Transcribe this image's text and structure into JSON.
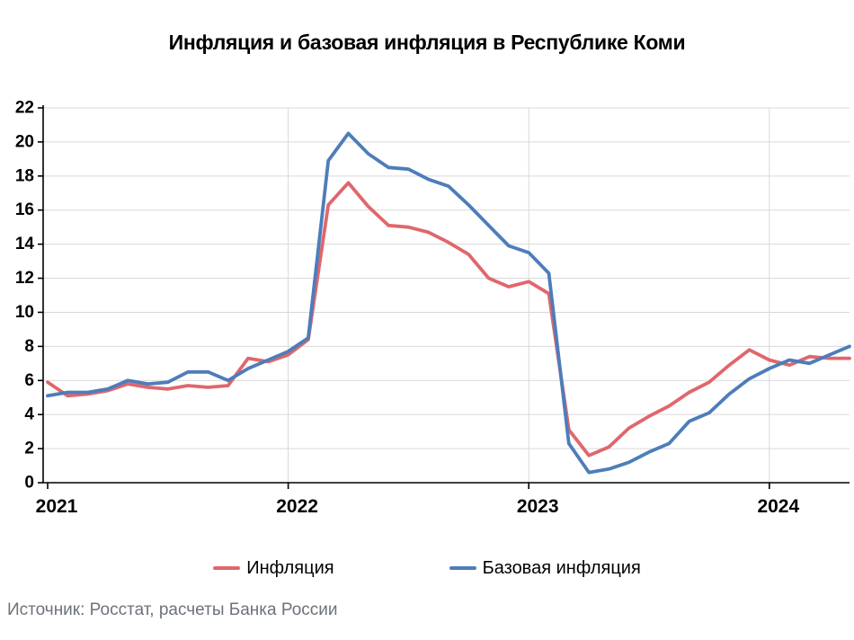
{
  "title": "Инфляция и базовая инфляция в Республике Коми",
  "source": "Источник: Росстат, расчеты Банка России",
  "legend": [
    {
      "label": "Инфляция",
      "color": "#df676c"
    },
    {
      "label": "Базовая инфляция",
      "color": "#4d7dba"
    }
  ],
  "colors": {
    "grid": "#d9d9d9",
    "axis": "#000000",
    "tick_label": "#000000",
    "inflation_line": "#df676c",
    "core_inflation_line": "#4d7dba"
  },
  "chart_data": {
    "type": "line",
    "title": "Инфляция и базовая инфляция в Республике Коми",
    "x_unit": "month",
    "x_start": "2021-01",
    "x_end": "2024-05",
    "x_tick_labels": [
      "2021",
      "2022",
      "2023",
      "2024"
    ],
    "x_tick_month_index": [
      0,
      12,
      24,
      36
    ],
    "y_tick_labels": [
      "0",
      "2",
      "4",
      "6",
      "8",
      "10",
      "12",
      "14",
      "16",
      "18",
      "20",
      "22"
    ],
    "ylim": [
      0,
      22
    ],
    "y_tick_step": 2,
    "grid": true,
    "legend_position": "bottom",
    "series": [
      {
        "name": "Инфляция",
        "color": "#df676c",
        "values": [
          5.9,
          5.1,
          5.2,
          5.4,
          5.8,
          5.6,
          5.5,
          5.7,
          5.6,
          5.7,
          7.3,
          7.1,
          7.5,
          8.4,
          16.3,
          17.6,
          16.2,
          15.1,
          15.0,
          14.7,
          14.1,
          13.4,
          12.0,
          11.5,
          11.8,
          11.1,
          3.1,
          1.6,
          2.1,
          3.2,
          3.9,
          4.5,
          5.3,
          5.9,
          6.9,
          7.8,
          7.2,
          6.9,
          7.4,
          7.3,
          7.3
        ]
      },
      {
        "name": "Базовая инфляция",
        "color": "#4d7dba",
        "values": [
          5.1,
          5.3,
          5.3,
          5.5,
          6.0,
          5.8,
          5.9,
          6.5,
          6.5,
          6.0,
          6.7,
          7.2,
          7.7,
          8.5,
          18.9,
          20.5,
          19.3,
          18.5,
          18.4,
          17.8,
          17.4,
          16.3,
          15.1,
          13.9,
          13.5,
          12.3,
          2.3,
          0.6,
          0.8,
          1.2,
          1.8,
          2.3,
          3.6,
          4.1,
          5.2,
          6.1,
          6.7,
          7.2,
          7.0,
          7.5,
          8.0
        ]
      }
    ]
  }
}
